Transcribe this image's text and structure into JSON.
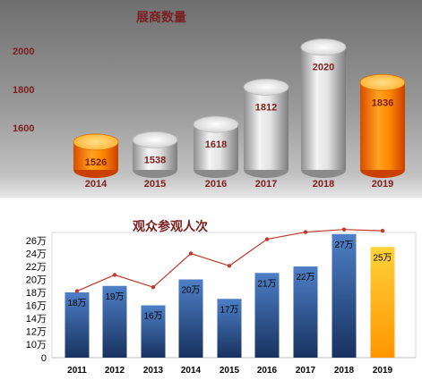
{
  "chart_data": [
    {
      "type": "bar",
      "title": "展商数量",
      "categories": [
        "2014",
        "2015",
        "2016",
        "2017",
        "2018",
        "2019"
      ],
      "values": [
        1526,
        1538,
        1618,
        1812,
        2020,
        1836
      ],
      "value_labels": [
        "1526",
        "1538",
        "1618",
        "1812",
        "2020",
        "1836"
      ],
      "yticks": [
        "2000",
        "1800",
        "1600"
      ],
      "ytick_values": [
        2000,
        1800,
        1600
      ],
      "highlight_categories": [
        "2014",
        "2019"
      ],
      "colors": {
        "bar": "#d9d9d9",
        "highlight": "#ff7a00",
        "title": "#7a1f1f",
        "label": "#7a1f1f"
      }
    },
    {
      "type": "bar",
      "title": "观众参观人次",
      "categories": [
        "2011",
        "2012",
        "2013",
        "2014",
        "2015",
        "2016",
        "2017",
        "2018",
        "2019"
      ],
      "values": [
        18,
        19,
        16,
        20,
        17,
        21,
        22,
        27,
        25
      ],
      "value_labels": [
        "18万",
        "19万",
        "16万",
        "20万",
        "17万",
        "21万",
        "22万",
        "27万",
        "25万"
      ],
      "line_values": [
        18.2,
        20.7,
        18.8,
        24.0,
        22.1,
        26.2,
        27.3,
        27.7,
        27.5
      ],
      "yticks": [
        "0",
        "10万",
        "12万",
        "14万",
        "16万",
        "18万",
        "20万",
        "22万",
        "24万",
        "26万"
      ],
      "ytick_values": [
        0,
        10,
        12,
        14,
        16,
        18,
        20,
        22,
        24,
        26
      ],
      "ylim": [
        0,
        27
      ],
      "highlight_categories": [
        "2019"
      ],
      "colors": {
        "bar": "#2e5a9e",
        "highlight": "#ffb800",
        "line": "#c0392b",
        "title": "#7a1f1f"
      }
    }
  ]
}
